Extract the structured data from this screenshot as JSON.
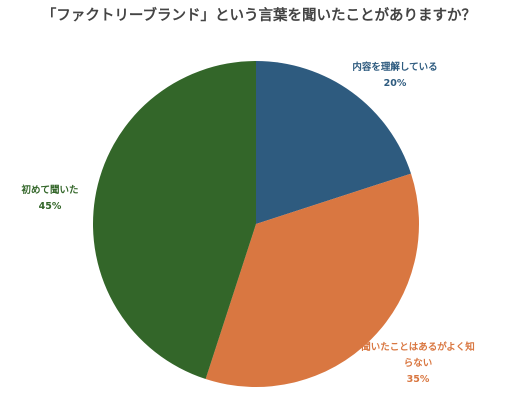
{
  "chart_data": {
    "type": "pie",
    "title": "「ファクトリーブランド」という言葉を聞いたことがありますか？",
    "slices": [
      {
        "label": "内容を理解している",
        "value": 20,
        "value_label": "20%",
        "color": "#2e5b7f"
      },
      {
        "label": "聞いたことはあるがよく知らない",
        "label_lines": [
          "聞いたことはあるがよく知",
          "らない"
        ],
        "value": 35,
        "value_label": "35%",
        "color": "#d97741"
      },
      {
        "label": "初めて聞いた",
        "value": 45,
        "value_label": "45%",
        "color": "#336629"
      }
    ],
    "start_angle_deg": 0,
    "direction": "clockwise",
    "legend": "none"
  }
}
